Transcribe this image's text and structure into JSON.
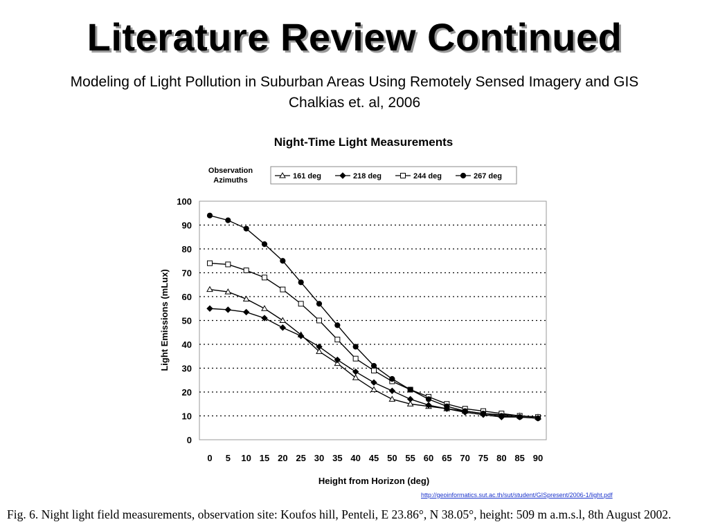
{
  "slide": {
    "title": "Literature Review Continued",
    "subtitle_line1": "Modeling of Light Pollution in Suburban Areas Using Remotely Sensed Imagery and GIS",
    "subtitle_line2": "Chalkias et. al, 2006",
    "source_link": "http://geoinformatics.sut.ac.th/sut/student/GISpresent/2006-1/light.pdf",
    "caption": "Fig. 6. Night light field measurements, observation site: Koufos hill, Penteli, E 23.86°, N 38.05°, height: 509 m a.m.s.l, 8th August 2002."
  },
  "chart_data": {
    "type": "line",
    "title": "Night-Time Light Measurements",
    "legend_title_line1": "Observation",
    "legend_title_line2": "Azimuths",
    "legend_placement": "top",
    "xlabel": "Height from Horizon (deg)",
    "ylabel": "Light Emissions (mLux)",
    "x": [
      0,
      5,
      10,
      15,
      20,
      25,
      30,
      35,
      40,
      45,
      50,
      55,
      60,
      65,
      70,
      75,
      80,
      85,
      90
    ],
    "x_tick_labels": [
      "0",
      "5",
      "10",
      "15",
      "20",
      "25",
      "30",
      "35",
      "40",
      "45",
      "50",
      "55",
      "60",
      "65",
      "70",
      "75",
      "80",
      "85",
      "90"
    ],
    "y_tick_labels": [
      "0",
      "10",
      "20",
      "30",
      "40",
      "50",
      "60",
      "70",
      "80",
      "90",
      "100"
    ],
    "xlim": [
      0,
      90
    ],
    "ylim": [
      0,
      100
    ],
    "grid": "horizontal dotted",
    "series": [
      {
        "name": "161 deg",
        "marker": "triangle-open",
        "values": [
          63,
          62,
          59,
          55,
          50,
          44,
          37,
          32,
          26,
          21,
          17,
          15,
          14,
          13,
          12,
          11,
          10.5,
          10,
          9.5
        ]
      },
      {
        "name": "218 deg",
        "marker": "diamond-filled",
        "values": [
          55,
          54.5,
          53.5,
          51,
          47,
          43.5,
          39,
          33.5,
          28.5,
          24,
          20.5,
          17,
          14.5,
          13,
          11.5,
          10.5,
          9.5,
          9.5,
          9
        ]
      },
      {
        "name": "244 deg",
        "marker": "square-open",
        "values": [
          74,
          73.5,
          71,
          68,
          63,
          57,
          50,
          42,
          34,
          29,
          24.5,
          21,
          18,
          15,
          13,
          12,
          11,
          10,
          9.5
        ]
      },
      {
        "name": "267 deg",
        "marker": "circle-filled",
        "values": [
          94,
          92,
          88.5,
          82,
          75,
          66,
          57,
          48,
          39,
          31,
          25.5,
          21,
          17,
          14,
          12,
          11,
          10,
          9.5,
          9
        ]
      }
    ],
    "colors": {
      "lines": "#000000",
      "grid": "#000000",
      "axes": "#888888"
    }
  }
}
